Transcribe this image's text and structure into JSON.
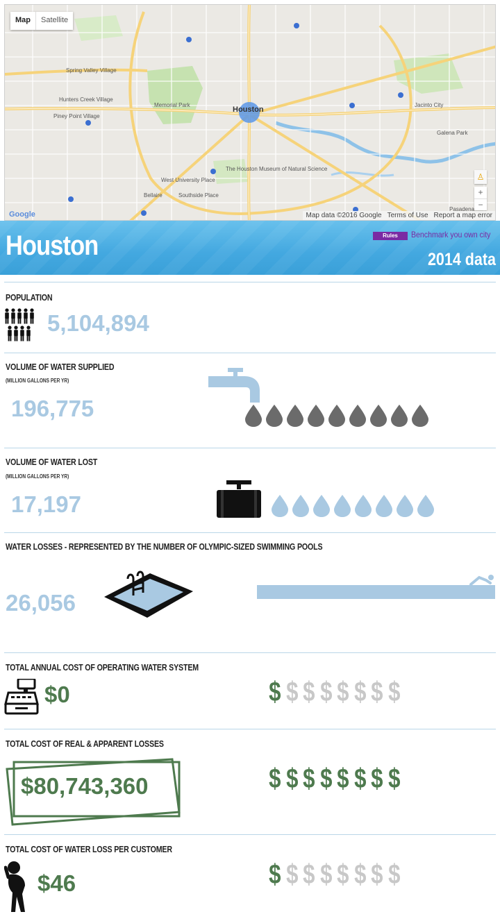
{
  "map": {
    "type_buttons": [
      "Map",
      "Satellite"
    ],
    "city_label": "Houston",
    "neighborhood_labels": [
      "Spring Valley Village",
      "Hunters Creek Village",
      "Piney Point Village",
      "Memorial Park",
      "The Houston Museum of Natural Science",
      "West University Place",
      "Bellaire",
      "Southside Place",
      "Jacinto City",
      "Galena Park",
      "Pasadena"
    ],
    "attribution": [
      "Map data ©2016 Google",
      "Terms of Use",
      "Report a map error"
    ],
    "google_logo": "Google",
    "zoom_in": "+",
    "zoom_out": "−"
  },
  "header": {
    "city": "Houston",
    "badge": "Rules",
    "benchmark_link": "Benchmark you own city",
    "year_label": "2014 data"
  },
  "population": {
    "label": "POPULATION",
    "value": "5,104,894",
    "icon": "people-icon"
  },
  "water_supplied": {
    "label": "VOLUME OF WATER SUPPLIED",
    "unit": "(MILLION GALLONS PER YR)",
    "value": "196,775",
    "icon": "faucet-icon",
    "drop_count": 9,
    "drop_color": "#6b6b6b"
  },
  "water_lost": {
    "label": "VOLUME OF WATER LOST",
    "unit": "(MILLION GALLONS PER YR)",
    "value": "17,197",
    "icon": "pipe-valve-icon",
    "drop_count": 8,
    "drop_color": "#a9c9e2"
  },
  "pools": {
    "label": "WATER LOSSES - REPRESENTED BY THE NUMBER OF OLYMPIC-SIZED SWIMMING POOLS",
    "value": "26,056",
    "icon": "swimming-pool-icon",
    "swimmer_icon": "swimmer-icon",
    "bar_color": "#a9c9e2"
  },
  "operating_cost": {
    "label": "TOTAL ANNUAL COST OF OPERATING WATER SYSTEM",
    "value": "$0",
    "icon": "cash-register-icon",
    "dollar_symbol": "$",
    "dollars_total": 8,
    "dollars_active": 1
  },
  "losses_cost": {
    "label": "TOTAL COST OF REAL & APPARENT LOSSES",
    "value": "$80,743,360",
    "icon": "banknote-icon",
    "dollar_symbol": "$",
    "dollars_total": 8,
    "dollars_active": 8
  },
  "customer_cost": {
    "label": "TOTAL COST OF WATER LOSS PER CUSTOMER",
    "value": "$46",
    "icon": "distressed-person-icon",
    "dollar_symbol": "$",
    "dollars_total": 8,
    "dollars_active": 1
  },
  "colors": {
    "accent_blue": "#a9c9e2",
    "money_green": "#4e7a4e",
    "header_blue": "#43a8e0",
    "badge_purple": "#7a2aa3"
  }
}
